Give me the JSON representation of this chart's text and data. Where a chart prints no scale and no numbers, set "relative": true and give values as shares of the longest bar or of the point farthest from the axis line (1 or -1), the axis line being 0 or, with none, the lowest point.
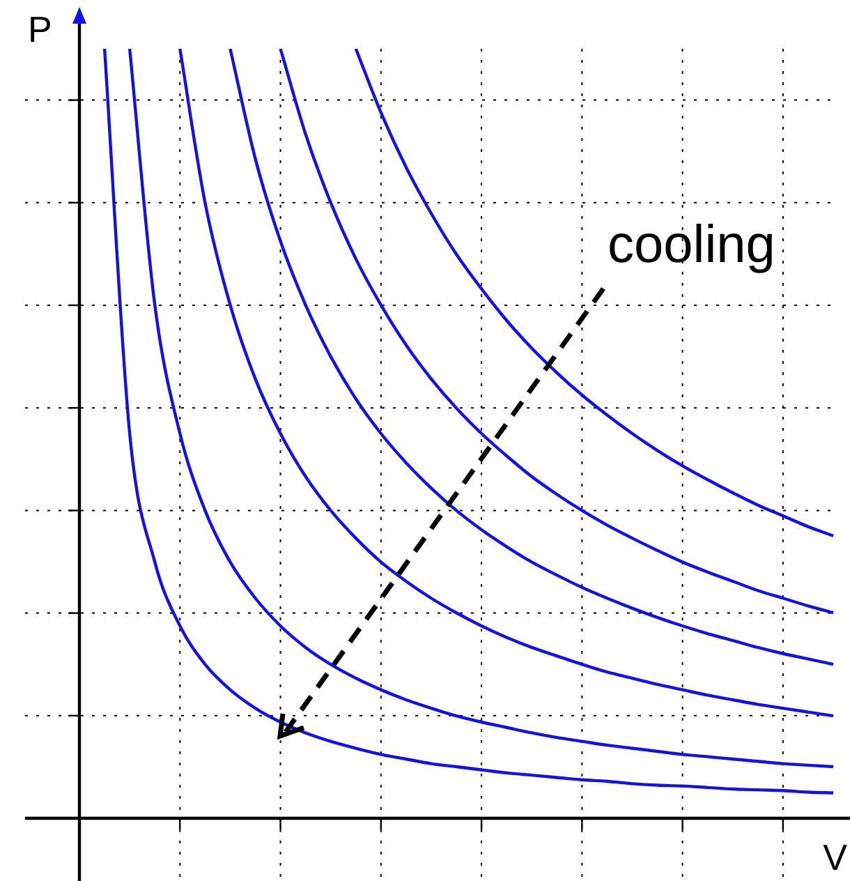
{
  "chart_data": {
    "type": "line",
    "relative": true,
    "xlabel": "V",
    "ylabel": "P",
    "annotations": [
      "cooling"
    ],
    "grid": true,
    "legend": false,
    "marker": "none",
    "line_style": "solid",
    "categories": [
      null,
      null,
      null,
      null,
      null,
      null,
      null,
      null,
      null,
      null,
      null,
      null,
      null,
      null,
      null,
      null,
      null,
      null,
      null,
      null,
      null,
      null,
      null,
      null,
      null,
      null,
      null,
      null,
      null,
      null,
      null
    ],
    "series": [
      {
        "color": "#1010f0",
        "values": [
          null,
          1,
          0.5,
          0.333,
          0.25,
          0.2,
          0.167,
          0.143,
          0.125,
          0.111,
          0.1,
          0.091,
          0.083,
          0.077,
          0.071,
          0.067,
          0.063,
          0.059,
          0.056,
          0.053,
          0.05,
          0.048,
          0.045,
          0.043,
          0.042,
          0.04,
          0.038,
          0.037,
          0.036,
          0.034,
          0.033
        ]
      },
      {
        "color": "#1010f0",
        "values": [
          null,
          null,
          1,
          0.667,
          0.5,
          0.4,
          0.333,
          0.286,
          0.25,
          0.222,
          0.2,
          0.182,
          0.167,
          0.154,
          0.143,
          0.133,
          0.125,
          0.118,
          0.111,
          0.105,
          0.1,
          0.095,
          0.091,
          0.087,
          0.083,
          0.08,
          0.077,
          0.074,
          0.071,
          0.069,
          0.067
        ]
      },
      {
        "color": "#1010f0",
        "values": [
          null,
          null,
          null,
          null,
          1,
          0.8,
          0.667,
          0.571,
          0.5,
          0.444,
          0.4,
          0.364,
          0.333,
          0.308,
          0.286,
          0.267,
          0.25,
          0.235,
          0.222,
          0.211,
          0.2,
          0.19,
          0.182,
          0.174,
          0.167,
          0.16,
          0.154,
          0.148,
          0.143,
          0.138,
          0.133
        ]
      },
      {
        "color": "#1010f0",
        "values": [
          null,
          null,
          null,
          null,
          null,
          null,
          1,
          0.857,
          0.75,
          0.667,
          0.6,
          0.545,
          0.5,
          0.462,
          0.429,
          0.4,
          0.375,
          0.353,
          0.333,
          0.316,
          0.3,
          0.286,
          0.273,
          0.261,
          0.25,
          0.24,
          0.231,
          0.222,
          0.214,
          0.207,
          0.2
        ]
      },
      {
        "color": "#1010f0",
        "values": [
          null,
          null,
          null,
          null,
          null,
          null,
          null,
          null,
          1,
          0.889,
          0.8,
          0.727,
          0.667,
          0.615,
          0.571,
          0.533,
          0.5,
          0.471,
          0.444,
          0.421,
          0.4,
          0.381,
          0.364,
          0.348,
          0.333,
          0.32,
          0.308,
          0.296,
          0.286,
          0.276,
          0.267
        ]
      },
      {
        "color": "#1010f0",
        "values": [
          null,
          null,
          null,
          null,
          null,
          null,
          null,
          null,
          null,
          null,
          null,
          1,
          0.917,
          0.846,
          0.786,
          0.733,
          0.688,
          0.647,
          0.611,
          0.579,
          0.55,
          0.524,
          0.5,
          0.478,
          0.458,
          0.44,
          0.423,
          0.407,
          0.393,
          0.379,
          0.367
        ]
      }
    ]
  }
}
